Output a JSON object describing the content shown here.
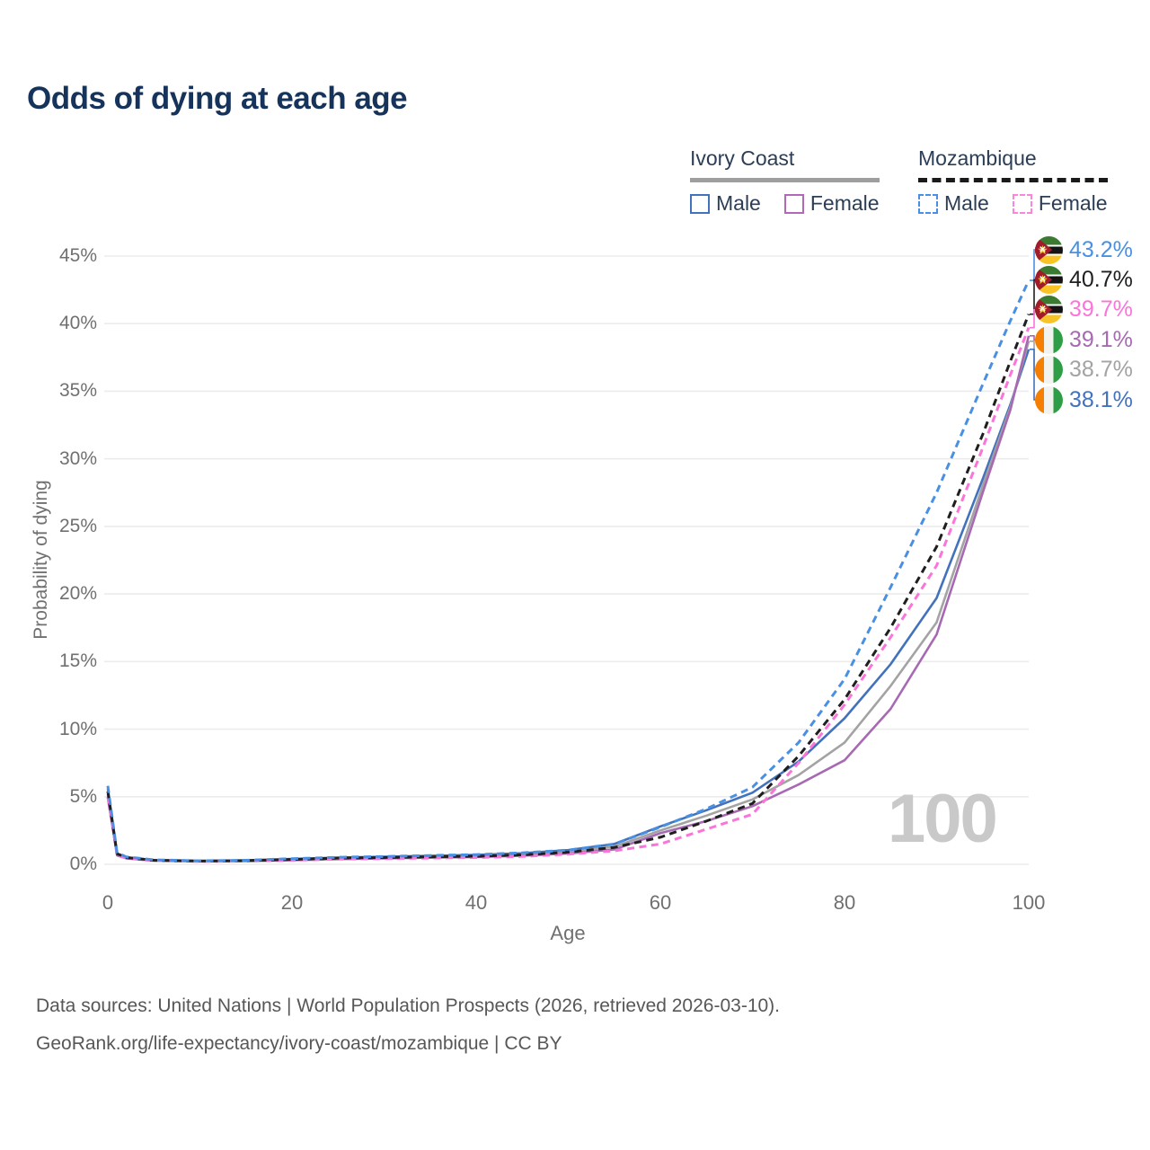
{
  "title": "Odds of dying at each age",
  "legend": {
    "groups": [
      {
        "name": "Ivory Coast",
        "line_style": "solid",
        "underline_color": "#9e9e9e",
        "items": [
          {
            "label": "Male",
            "color": "#4372bd"
          },
          {
            "label": "Female",
            "color": "#b168b8"
          }
        ]
      },
      {
        "name": "Mozambique",
        "line_style": "dashed",
        "underline_color": "#1a1a1a",
        "items": [
          {
            "label": "Male",
            "color": "#4a90e2"
          },
          {
            "label": "Female",
            "color": "#fb84de"
          }
        ]
      }
    ]
  },
  "chart_data": {
    "type": "line",
    "title": "Odds of dying at each age",
    "xlabel": "Age",
    "ylabel": "Probability of dying",
    "xlim": [
      0,
      100
    ],
    "ylim": [
      0,
      45
    ],
    "x_ticks": [
      0,
      20,
      40,
      60,
      80,
      100
    ],
    "y_ticks": [
      "0%",
      "5%",
      "10%",
      "15%",
      "20%",
      "25%",
      "30%",
      "35%",
      "40%",
      "45%"
    ],
    "grid": "horizontal-only",
    "legend_position": "top-right",
    "watermark": "100",
    "x": [
      0,
      1,
      2,
      5,
      10,
      15,
      20,
      25,
      30,
      35,
      40,
      45,
      50,
      55,
      60,
      65,
      70,
      75,
      80,
      85,
      90,
      95,
      98,
      100
    ],
    "series": [
      {
        "name": "Mozambique Male",
        "country": "Mozambique",
        "flag": "mozambique",
        "dash": true,
        "color": "#4a90e2",
        "label_color": "#4a90e2",
        "end_label": "43.2%",
        "end_value": 43.2,
        "values": [
          5.8,
          0.85,
          0.55,
          0.33,
          0.26,
          0.3,
          0.42,
          0.52,
          0.58,
          0.65,
          0.72,
          0.85,
          1.05,
          1.5,
          2.75,
          4.1,
          5.7,
          9.0,
          13.7,
          20.5,
          27.5,
          35.5,
          40.2,
          43.2
        ]
      },
      {
        "name": "Mozambique",
        "country": "Mozambique",
        "flag": "mozambique",
        "dash": true,
        "color": "#1f1f1f",
        "label_color": "#1f1f1f",
        "end_label": "40.7%",
        "end_value": 40.7,
        "values": [
          5.4,
          0.78,
          0.5,
          0.3,
          0.24,
          0.27,
          0.36,
          0.46,
          0.5,
          0.55,
          0.6,
          0.7,
          0.9,
          1.25,
          2.0,
          3.2,
          4.5,
          8.0,
          12.2,
          17.5,
          23.5,
          31.8,
          37.2,
          40.7
        ]
      },
      {
        "name": "Mozambique Female",
        "country": "Mozambique",
        "flag": "mozambique",
        "dash": true,
        "color": "#fb74d9",
        "label_color": "#fb74d9",
        "end_label": "39.7%",
        "end_value": 39.7,
        "values": [
          5.0,
          0.7,
          0.45,
          0.27,
          0.21,
          0.23,
          0.3,
          0.38,
          0.42,
          0.46,
          0.5,
          0.58,
          0.75,
          1.0,
          1.5,
          2.6,
          3.7,
          7.5,
          11.8,
          16.8,
          22.1,
          30.8,
          36.2,
          39.7
        ]
      },
      {
        "name": "Ivory Coast Female",
        "country": "Ivory Coast",
        "flag": "ivory-coast",
        "dash": false,
        "color": "#a76ab2",
        "label_color": "#a76ab2",
        "end_label": "39.1%",
        "end_value": 39.1,
        "values": [
          4.9,
          0.66,
          0.44,
          0.26,
          0.21,
          0.24,
          0.3,
          0.38,
          0.44,
          0.49,
          0.54,
          0.64,
          0.8,
          1.1,
          2.3,
          3.2,
          4.3,
          5.9,
          7.7,
          11.5,
          17.0,
          27.5,
          33.6,
          39.1
        ]
      },
      {
        "name": "Ivory Coast",
        "country": "Ivory Coast",
        "flag": "ivory-coast",
        "dash": false,
        "color": "#a3a3a3",
        "label_color": "#a3a3a3",
        "end_label": "38.7%",
        "end_value": 38.7,
        "values": [
          5.2,
          0.73,
          0.48,
          0.29,
          0.23,
          0.27,
          0.35,
          0.45,
          0.5,
          0.56,
          0.62,
          0.73,
          0.92,
          1.3,
          2.5,
          3.6,
          4.8,
          6.6,
          9.0,
          13.2,
          17.9,
          28.0,
          33.8,
          38.7
        ]
      },
      {
        "name": "Ivory Coast Male",
        "country": "Ivory Coast",
        "flag": "ivory-coast",
        "dash": false,
        "color": "#4372bd",
        "label_color": "#4372bd",
        "end_label": "38.1%",
        "end_value": 38.1,
        "values": [
          5.6,
          0.8,
          0.52,
          0.31,
          0.25,
          0.3,
          0.4,
          0.5,
          0.56,
          0.63,
          0.7,
          0.82,
          1.05,
          1.5,
          2.8,
          4.0,
          5.3,
          7.6,
          10.8,
          14.8,
          19.7,
          28.5,
          34.0,
          38.1
        ]
      }
    ]
  },
  "footer": {
    "line1": "Data sources: United Nations | World Population Prospects (2026, retrieved 2026-03-10).",
    "line2": "GeoRank.org/life-expectancy/ivory-coast/mozambique | CC BY"
  }
}
